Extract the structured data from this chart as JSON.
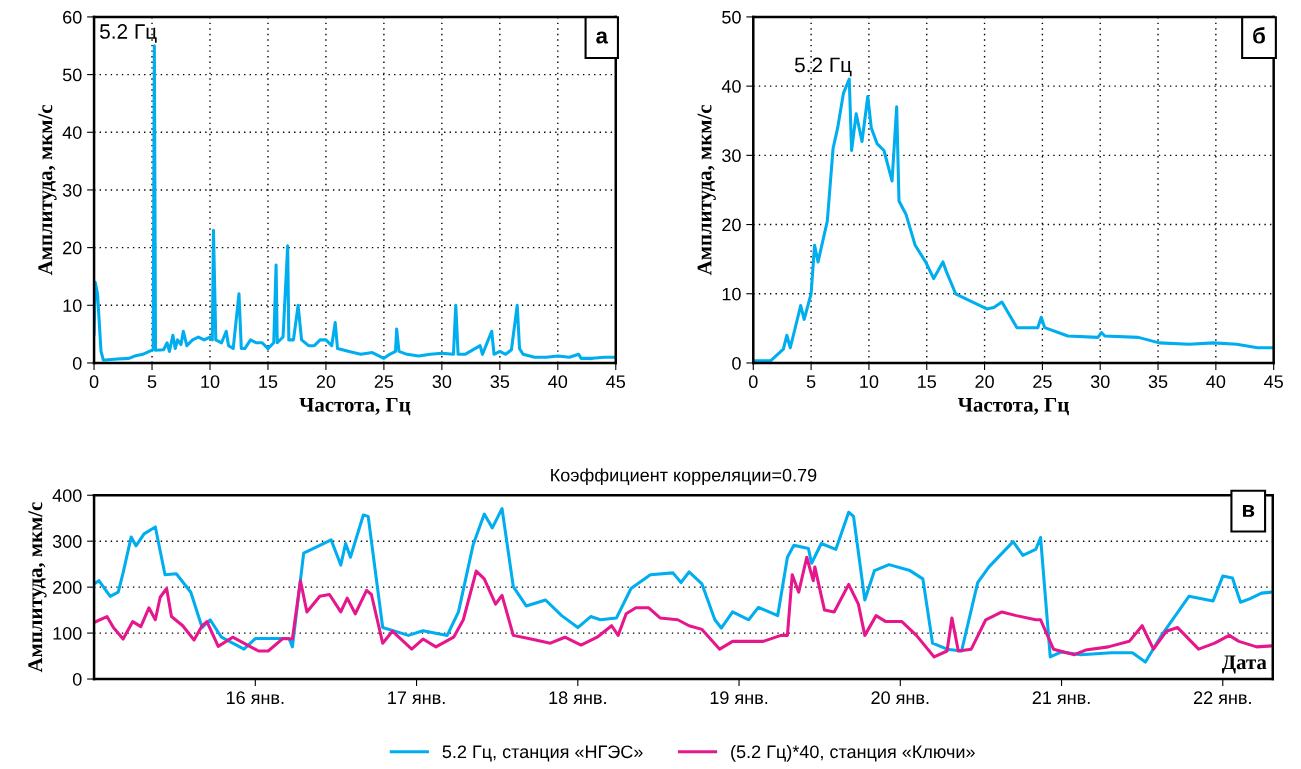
{
  "chart_data": [
    {
      "type": "line",
      "xlabel": "Частота, Гц",
      "ylabel": "Амплитуда, мкм/с",
      "xlim": [
        0,
        45
      ],
      "ylim": [
        0,
        60
      ],
      "xticks": [
        0,
        5,
        10,
        15,
        20,
        25,
        30,
        35,
        40,
        45
      ],
      "yticks": [
        0,
        10,
        20,
        30,
        40,
        50,
        60
      ],
      "grid": true,
      "annotations": [
        {
          "text": "5.2 Гц",
          "x": 5.2,
          "y": 55
        },
        "а"
      ],
      "series": [
        {
          "color": "#00aeef",
          "x": [
            0,
            0.1,
            0.3,
            0.6,
            0.8,
            1.0,
            2,
            3,
            3.5,
            4.2,
            5.1,
            5.2,
            5.3,
            6,
            6.3,
            6.5,
            6.8,
            7.0,
            7.2,
            7.5,
            7.7,
            8,
            8.5,
            9,
            9.5,
            10,
            10.2,
            10.3,
            10.5,
            11,
            11.4,
            11.6,
            12,
            12.5,
            12.7,
            13,
            13.5,
            14,
            14.5,
            15,
            15.5,
            15.7,
            15.8,
            16.3,
            16.7,
            16.8,
            17.2,
            17.6,
            17.9,
            18.5,
            19,
            19.5,
            20,
            20.5,
            20.8,
            21,
            22,
            23,
            24,
            25,
            25.5,
            26,
            26.1,
            26.3,
            27,
            28,
            29,
            30,
            31,
            31.2,
            31.4,
            32,
            33.3,
            33.5,
            34.3,
            34.5,
            35,
            35.5,
            36,
            36.5,
            36.7,
            37,
            38,
            39,
            40,
            41,
            41.8,
            42,
            43,
            44,
            45
          ],
          "values": [
            5,
            14,
            12,
            2,
            0.5,
            0.5,
            0.7,
            0.8,
            1.2,
            1.5,
            2.3,
            55,
            2.2,
            2.3,
            3.5,
            2,
            4.8,
            2.5,
            4,
            3.2,
            5.5,
            3,
            4,
            4.5,
            4,
            4.5,
            4,
            23,
            4,
            3.5,
            5.5,
            3,
            2.5,
            12,
            2.5,
            2.5,
            4,
            3.5,
            3.5,
            2.5,
            3.5,
            17,
            3.5,
            4.5,
            20.3,
            4,
            4,
            10,
            4,
            3,
            3,
            4,
            4,
            3,
            7,
            2.5,
            2,
            1.5,
            1.8,
            0.8,
            1.5,
            2,
            5.9,
            2,
            1.5,
            1.2,
            1.5,
            1.7,
            1.5,
            10,
            1.5,
            1.5,
            3,
            1.5,
            5.5,
            1.5,
            2,
            1.5,
            2.3,
            10,
            2.5,
            1.5,
            1,
            1,
            1.2,
            1,
            1.5,
            0.8,
            0.8,
            1,
            1
          ]
        }
      ]
    },
    {
      "type": "line",
      "xlabel": "Частота, Гц",
      "ylabel": "Амплитуда, мкм/с",
      "xlim": [
        0,
        45
      ],
      "ylim": [
        0,
        50
      ],
      "xticks": [
        0,
        5,
        10,
        15,
        20,
        25,
        30,
        35,
        40,
        45
      ],
      "yticks": [
        0,
        10,
        20,
        30,
        40,
        50
      ],
      "grid": true,
      "annotations": [
        {
          "text": "5.2 Гц",
          "x": 8.3,
          "y": 41
        },
        "б"
      ],
      "series": [
        {
          "color": "#00aeef",
          "x": [
            0,
            1.5,
            2.6,
            2.9,
            3.2,
            4.1,
            4.4,
            5,
            5.3,
            5.6,
            6.4,
            6.9,
            7.3,
            7.8,
            8.3,
            8.5,
            8.9,
            9.4,
            9.9,
            10.2,
            10.7,
            11.3,
            12,
            12.4,
            12.6,
            13.2,
            14,
            14.9,
            15.6,
            16.4,
            16.7,
            17.5,
            18.7,
            20.2,
            20.8,
            21.5,
            22.8,
            24.6,
            24.9,
            25.2,
            27.2,
            29.8,
            30.1,
            30.4,
            33.3,
            35.1,
            37.7,
            39.8,
            41.8,
            43.6,
            44.9
          ],
          "values": [
            0.3,
            0.3,
            2,
            4,
            2.2,
            8.3,
            6.3,
            10,
            17,
            14.6,
            20.5,
            31,
            34,
            39,
            41,
            30.7,
            36,
            32,
            38.5,
            34,
            31.7,
            30.7,
            26.3,
            37,
            23.4,
            21.5,
            17,
            14.6,
            12.2,
            14.6,
            13.2,
            10,
            9,
            7.8,
            8,
            8.8,
            5.1,
            5.1,
            6.6,
            5.1,
            3.9,
            3.7,
            4.4,
            3.9,
            3.7,
            2.9,
            2.7,
            2.9,
            2.7,
            2.2,
            2.2
          ]
        }
      ]
    },
    {
      "type": "line",
      "title": "Коэффициент корреляции=0.79",
      "xlabel": "Дата",
      "ylabel": "Амплитуда, мкм/с",
      "xlim": [
        15,
        22.31
      ],
      "ylim": [
        0,
        400
      ],
      "xticks": [
        {
          "value": 16,
          "label": "16 янв."
        },
        {
          "value": 17,
          "label": "17 янв."
        },
        {
          "value": 18,
          "label": "18 янв."
        },
        {
          "value": 19,
          "label": "19 янв."
        },
        {
          "value": 20,
          "label": "20 янв."
        },
        {
          "value": 21,
          "label": "21 янв."
        },
        {
          "value": 22,
          "label": "22 янв."
        }
      ],
      "yticks": [
        0,
        100,
        200,
        300,
        400
      ],
      "grid": "y",
      "legend": "bottom",
      "annotations": [
        "в"
      ],
      "series": [
        {
          "name": "5.2 Гц, станция «НГЭС»",
          "color": "#00aeef",
          "x": [
            15.0,
            15.03,
            15.1,
            15.15,
            15.18,
            15.23,
            15.26,
            15.31,
            15.38,
            15.44,
            15.51,
            15.6,
            15.67,
            15.72,
            15.79,
            15.93,
            16,
            16.21,
            16.23,
            16.3,
            16.4,
            16.47,
            16.53,
            16.56,
            16.59,
            16.67,
            16.7,
            16.79,
            16.95,
            17.04,
            17.19,
            17.26,
            17.35,
            17.42,
            17.47,
            17.53,
            17.6,
            17.68,
            17.8,
            17.9,
            18.0,
            18.08,
            18.14,
            18.24,
            18.33,
            18.45,
            18.59,
            18.64,
            18.69,
            18.77,
            18.85,
            18.89,
            18.96,
            19.06,
            19.12,
            19.24,
            19.3,
            19.34,
            19.43,
            19.45,
            19.51,
            19.6,
            19.68,
            19.71,
            19.78,
            19.84,
            19.93,
            20.06,
            20.14,
            20.2,
            20.29,
            20.38,
            20.48,
            20.55,
            20.7,
            20.76,
            20.84,
            20.87,
            20.93,
            21.0,
            21.12,
            21.31,
            21.44,
            21.52,
            21.62,
            21.79,
            21.94,
            22.0,
            22.06,
            22.11,
            22.17,
            22.24,
            22.3
          ],
          "values": [
            207,
            214,
            180,
            189,
            231,
            309,
            290,
            316,
            331,
            227,
            229,
            189,
            112,
            129,
            91,
            65,
            88,
            88,
            70,
            274,
            291,
            303,
            248,
            295,
            265,
            357,
            354,
            112,
            95,
            105,
            95,
            146,
            291,
            359,
            329,
            371,
            201,
            159,
            172,
            138,
            112,
            136,
            129,
            133,
            197,
            227,
            231,
            210,
            233,
            207,
            129,
            111,
            146,
            129,
            156,
            138,
            265,
            291,
            284,
            252,
            295,
            282,
            363,
            354,
            172,
            236,
            249,
            236,
            218,
            78,
            65,
            61,
            210,
            244,
            299,
            269,
            282,
            308,
            48,
            59,
            53,
            57,
            57,
            37,
            95,
            180,
            170,
            224,
            220,
            167,
            175,
            187,
            189
          ]
        },
        {
          "name": "(5.2 Гц)*40, станция «Ключи»",
          "color": "#e6168c",
          "x": [
            15.0,
            15.08,
            15.12,
            15.18,
            15.24,
            15.29,
            15.34,
            15.38,
            15.41,
            15.45,
            15.48,
            15.55,
            15.62,
            15.67,
            15.7,
            15.77,
            15.86,
            16.02,
            16.08,
            16.17,
            16.23,
            16.28,
            16.32,
            16.4,
            16.46,
            16.53,
            16.57,
            16.62,
            16.69,
            16.72,
            16.79,
            16.85,
            16.97,
            17.04,
            17.12,
            17.23,
            17.29,
            17.37,
            17.42,
            17.49,
            17.53,
            17.6,
            17.71,
            17.83,
            17.92,
            18.02,
            18.12,
            18.21,
            18.25,
            18.3,
            18.36,
            18.44,
            18.51,
            18.62,
            18.69,
            18.77,
            18.88,
            18.96,
            19.15,
            19.26,
            19.3,
            19.33,
            19.37,
            19.42,
            19.46,
            19.47,
            19.53,
            19.59,
            19.68,
            19.74,
            19.78,
            19.85,
            19.91,
            20.01,
            20.1,
            20.21,
            20.29,
            20.32,
            20.36,
            20.44,
            20.53,
            20.63,
            20.72,
            20.84,
            20.87,
            20.95,
            21.08,
            21.15,
            21.29,
            21.42,
            21.5,
            21.57,
            21.65,
            21.72,
            21.85,
            21.95,
            22.04,
            22.1,
            22.21,
            22.3
          ],
          "values": [
            123,
            136,
            112,
            87,
            125,
            114,
            155,
            129,
            178,
            197,
            136,
            116,
            85,
            116,
            125,
            71,
            91,
            61,
            61,
            88,
            87,
            214,
            146,
            180,
            184,
            146,
            176,
            142,
            193,
            184,
            78,
            104,
            65,
            87,
            70,
            91,
            129,
            235,
            218,
            163,
            182,
            95,
            87,
            78,
            91,
            74,
            91,
            116,
            95,
            142,
            155,
            155,
            133,
            129,
            116,
            108,
            65,
            82,
            82,
            95,
            95,
            227,
            189,
            265,
            214,
            244,
            150,
            146,
            206,
            163,
            95,
            138,
            125,
            125,
            95,
            48,
            61,
            133,
            61,
            65,
            129,
            146,
            138,
            129,
            129,
            65,
            53,
            63,
            70,
            82,
            116,
            65,
            104,
            112,
            65,
            78,
            95,
            82,
            70,
            72
          ]
        }
      ]
    }
  ]
}
